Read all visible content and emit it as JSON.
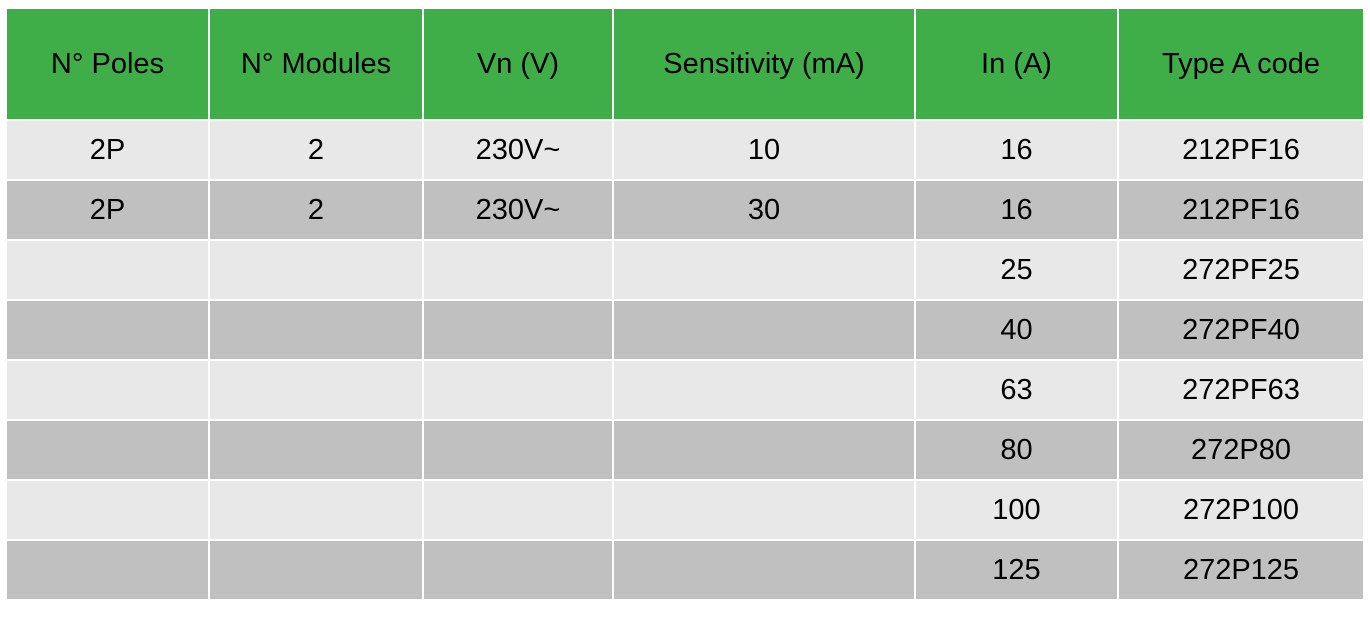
{
  "headers": [
    "N° Poles",
    "N° Modules",
    "Vn (V)",
    "Sensitivity (mA)",
    "In (A)",
    "Type A code"
  ],
  "rows": [
    [
      "2P",
      "2",
      "230V~",
      "10",
      "16",
      "212PF16"
    ],
    [
      "2P",
      "2",
      "230V~",
      "30",
      "16",
      "212PF16"
    ],
    [
      "",
      "",
      "",
      "",
      "25",
      "272PF25"
    ],
    [
      "",
      "",
      "",
      "",
      "40",
      "272PF40"
    ],
    [
      "",
      "",
      "",
      "",
      "63",
      "272PF63"
    ],
    [
      "",
      "",
      "",
      "",
      "80",
      "272P80"
    ],
    [
      "",
      "",
      "",
      "",
      "100",
      "272P100"
    ],
    [
      "",
      "",
      "",
      "",
      "125",
      "272P125"
    ]
  ],
  "colors": {
    "header_bg": "#3fae49",
    "row_light": "#e8e8e8",
    "row_dark": "#c0c0c0"
  }
}
